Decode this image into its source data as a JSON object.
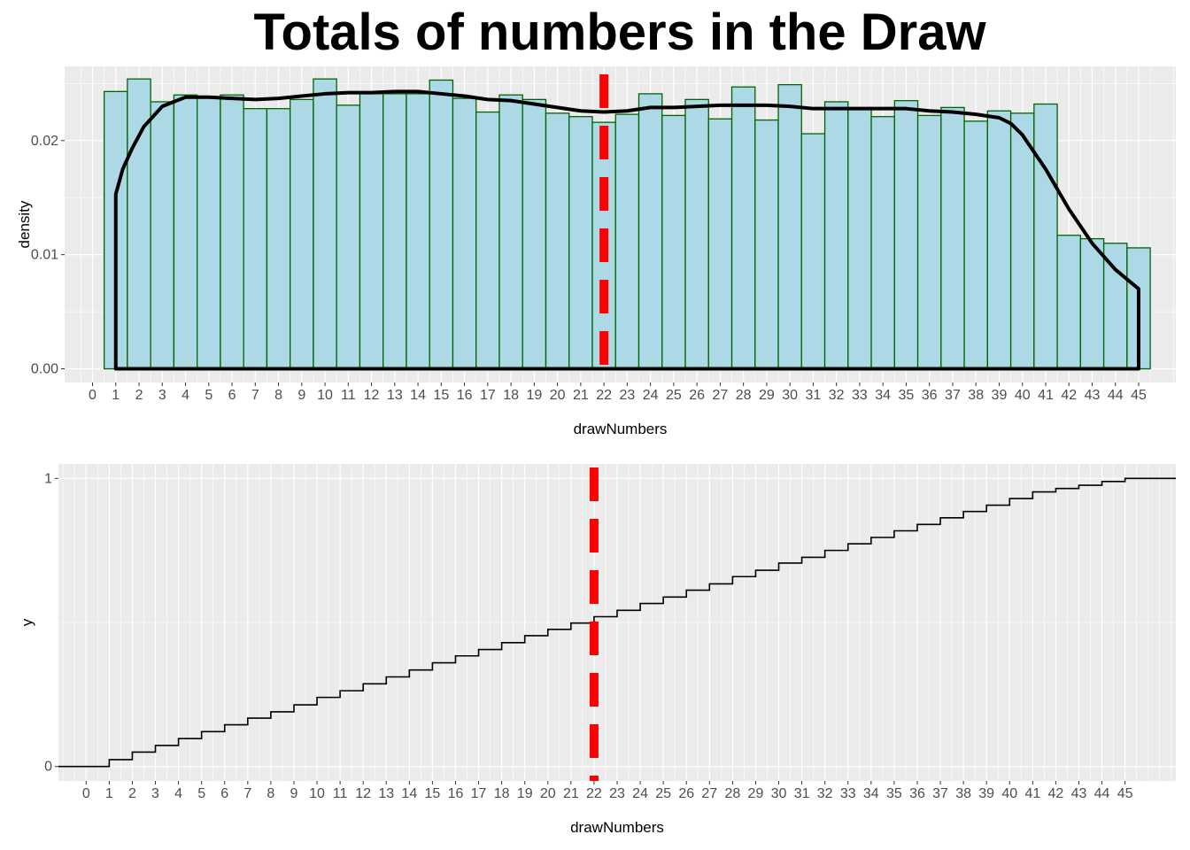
{
  "title": "Totals of numbers in the Draw",
  "colors": {
    "panel_bg": "#ebebeb",
    "grid": "#ffffff",
    "bar_fill": "#add8e6",
    "bar_outline": "#006400",
    "density_line": "#000000",
    "ecdf_line": "#000000",
    "vline": "#ff0000"
  },
  "chart_data": [
    {
      "type": "bar",
      "subtype": "histogram-with-density",
      "title": "Totals of numbers in the Draw",
      "xlabel": "drawNumbers",
      "ylabel": "density",
      "x_ticks": [
        0,
        1,
        2,
        3,
        4,
        5,
        6,
        7,
        8,
        9,
        10,
        11,
        12,
        13,
        14,
        15,
        16,
        17,
        18,
        19,
        20,
        21,
        22,
        23,
        24,
        25,
        26,
        27,
        28,
        29,
        30,
        31,
        32,
        33,
        34,
        35,
        36,
        37,
        38,
        39,
        40,
        41,
        42,
        43,
        44,
        45
      ],
      "y_ticks": [
        "0.00",
        "0.01",
        "0.02"
      ],
      "ylim": [
        -0.0012,
        0.0265
      ],
      "xlim": [
        -1.2,
        46.6
      ],
      "bin_width": 1,
      "categories": [
        1,
        2,
        3,
        4,
        5,
        6,
        7,
        8,
        9,
        10,
        11,
        12,
        13,
        14,
        15,
        16,
        17,
        18,
        19,
        20,
        21,
        22,
        23,
        24,
        25,
        26,
        27,
        28,
        29,
        30,
        31,
        32,
        33,
        34,
        35,
        36,
        37,
        38,
        39,
        40,
        41,
        42,
        43,
        44,
        45
      ],
      "values": [
        0.0243,
        0.0254,
        0.0234,
        0.024,
        0.0238,
        0.024,
        0.0228,
        0.0228,
        0.0236,
        0.0254,
        0.0231,
        0.0241,
        0.0241,
        0.0241,
        0.0253,
        0.0237,
        0.0225,
        0.024,
        0.0236,
        0.0224,
        0.0221,
        0.0216,
        0.0223,
        0.0241,
        0.0222,
        0.0236,
        0.0219,
        0.0247,
        0.0218,
        0.0249,
        0.0206,
        0.0234,
        0.0228,
        0.0221,
        0.0235,
        0.0222,
        0.0229,
        0.0217,
        0.0226,
        0.0224,
        0.0232,
        0.0117,
        0.0114,
        0.011,
        0.0106
      ],
      "density_x": [
        1,
        1.3,
        1.7,
        2.2,
        3,
        4,
        5,
        6,
        7,
        8,
        9,
        10,
        11,
        12,
        13,
        14,
        15,
        16,
        17,
        18,
        19,
        20,
        21,
        22,
        23,
        24,
        25,
        26,
        27,
        28,
        29,
        30,
        31,
        32,
        33,
        34,
        35,
        36,
        37,
        38,
        39,
        39.5,
        40,
        41,
        42,
        43,
        44,
        45
      ],
      "density_y": [
        0.0153,
        0.0175,
        0.0193,
        0.0212,
        0.023,
        0.0238,
        0.0238,
        0.0237,
        0.0236,
        0.0237,
        0.0239,
        0.0241,
        0.0242,
        0.0242,
        0.0243,
        0.0243,
        0.0241,
        0.0239,
        0.0236,
        0.0235,
        0.0232,
        0.0229,
        0.0226,
        0.0225,
        0.0226,
        0.0229,
        0.0229,
        0.023,
        0.0231,
        0.0231,
        0.0231,
        0.023,
        0.0228,
        0.0228,
        0.0228,
        0.0228,
        0.0228,
        0.0226,
        0.0225,
        0.0223,
        0.022,
        0.0215,
        0.0205,
        0.0175,
        0.014,
        0.011,
        0.0087,
        0.007
      ],
      "vline_x": 22
    },
    {
      "type": "line",
      "subtype": "ecdf-step",
      "xlabel": "drawNumbers",
      "ylabel": "y",
      "x_ticks": [
        0,
        1,
        2,
        3,
        4,
        5,
        6,
        7,
        8,
        9,
        10,
        11,
        12,
        13,
        14,
        15,
        16,
        17,
        18,
        19,
        20,
        21,
        22,
        23,
        24,
        25,
        26,
        27,
        28,
        29,
        30,
        31,
        32,
        33,
        34,
        35,
        36,
        37,
        38,
        39,
        40,
        41,
        42,
        43,
        44,
        45
      ],
      "y_ticks": [
        "0",
        "1"
      ],
      "ylim": [
        -0.05,
        1.05
      ],
      "xlim": [
        -1.2,
        47.2
      ],
      "step_x": [
        1,
        2,
        3,
        4,
        5,
        6,
        7,
        8,
        9,
        10,
        11,
        12,
        13,
        14,
        15,
        16,
        17,
        18,
        19,
        20,
        21,
        22,
        23,
        24,
        25,
        26,
        27,
        28,
        29,
        30,
        31,
        32,
        33,
        34,
        35,
        36,
        37,
        38,
        39,
        40,
        41,
        42,
        43,
        44,
        45
      ],
      "step_y": [
        0.024,
        0.05,
        0.073,
        0.097,
        0.121,
        0.145,
        0.168,
        0.19,
        0.214,
        0.24,
        0.263,
        0.287,
        0.311,
        0.335,
        0.36,
        0.384,
        0.406,
        0.43,
        0.454,
        0.476,
        0.498,
        0.52,
        0.542,
        0.566,
        0.588,
        0.612,
        0.634,
        0.659,
        0.681,
        0.706,
        0.726,
        0.75,
        0.773,
        0.795,
        0.818,
        0.84,
        0.863,
        0.885,
        0.907,
        0.93,
        0.953,
        0.965,
        0.976,
        0.989,
        1.0
      ],
      "line_start_x": -1.2,
      "line_end_x": 47.2,
      "vline_x": 22
    }
  ]
}
